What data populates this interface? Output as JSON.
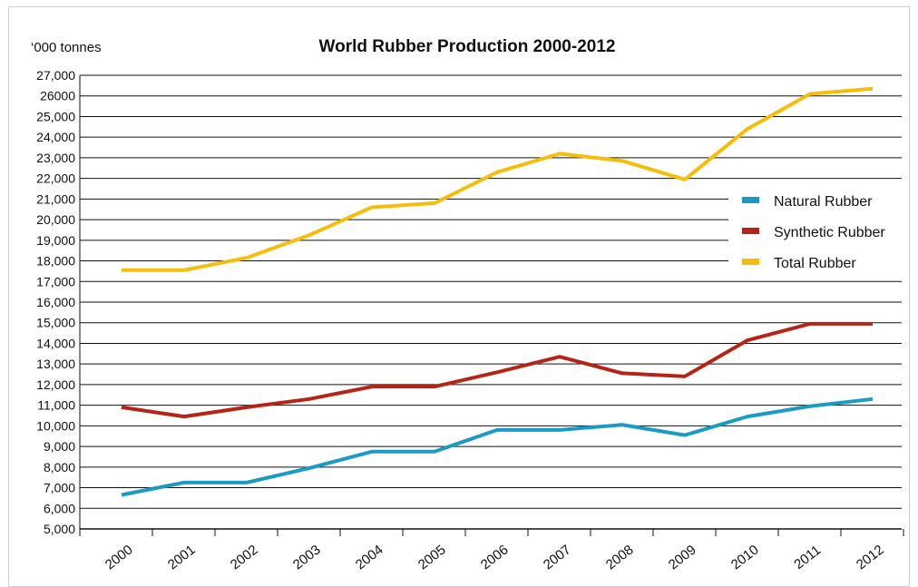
{
  "chart_data": {
    "type": "line",
    "title": "World Rubber Production 2000-2012",
    "unit_label": "‘000 tonnes",
    "xlabel": "",
    "ylabel": "",
    "ylim": [
      5000,
      27000
    ],
    "y_ticks": [
      {
        "value": 5000,
        "label": "5,000"
      },
      {
        "value": 6000,
        "label": "6,000"
      },
      {
        "value": 7000,
        "label": "7,000"
      },
      {
        "value": 8000,
        "label": "8,000"
      },
      {
        "value": 9000,
        "label": "9,000"
      },
      {
        "value": 10000,
        "label": "10,000"
      },
      {
        "value": 11000,
        "label": "11,000"
      },
      {
        "value": 12000,
        "label": "12,000"
      },
      {
        "value": 13000,
        "label": "13,000"
      },
      {
        "value": 14000,
        "label": "14,000"
      },
      {
        "value": 15000,
        "label": "15,000"
      },
      {
        "value": 16000,
        "label": "16,000"
      },
      {
        "value": 17000,
        "label": "17,000"
      },
      {
        "value": 18000,
        "label": "18,000"
      },
      {
        "value": 19000,
        "label": "19,000"
      },
      {
        "value": 20000,
        "label": "20,000"
      },
      {
        "value": 21000,
        "label": "21,000"
      },
      {
        "value": 22000,
        "label": "22,000"
      },
      {
        "value": 23000,
        "label": "23,000"
      },
      {
        "value": 24000,
        "label": "24,000"
      },
      {
        "value": 25000,
        "label": "25,000"
      },
      {
        "value": 26000,
        "label": "26000"
      },
      {
        "value": 27000,
        "label": "27,000"
      }
    ],
    "categories": [
      "2000",
      "2001",
      "2002",
      "2003",
      "2004",
      "2005",
      "2006",
      "2007",
      "2008",
      "2009",
      "2010",
      "2011",
      "2012"
    ],
    "grid": true,
    "legend_position": "right",
    "series": [
      {
        "name": "Natural Rubber",
        "color": "#1b9bc4",
        "values": [
          6650,
          7250,
          7250,
          7950,
          8750,
          8750,
          9800,
          9800,
          10050,
          9550,
          10450,
          10950,
          11300
        ]
      },
      {
        "name": "Synthetic Rubber",
        "color": "#b52416",
        "values": [
          10900,
          10450,
          10900,
          11300,
          11900,
          11900,
          12600,
          13350,
          12550,
          12400,
          14150,
          14950,
          14950
        ]
      },
      {
        "name": "Total Rubber",
        "color": "#f5bd0c",
        "values": [
          17550,
          17550,
          18150,
          19250,
          20600,
          20800,
          22300,
          23200,
          22850,
          21950,
          24400,
          26100,
          26350
        ]
      }
    ]
  }
}
